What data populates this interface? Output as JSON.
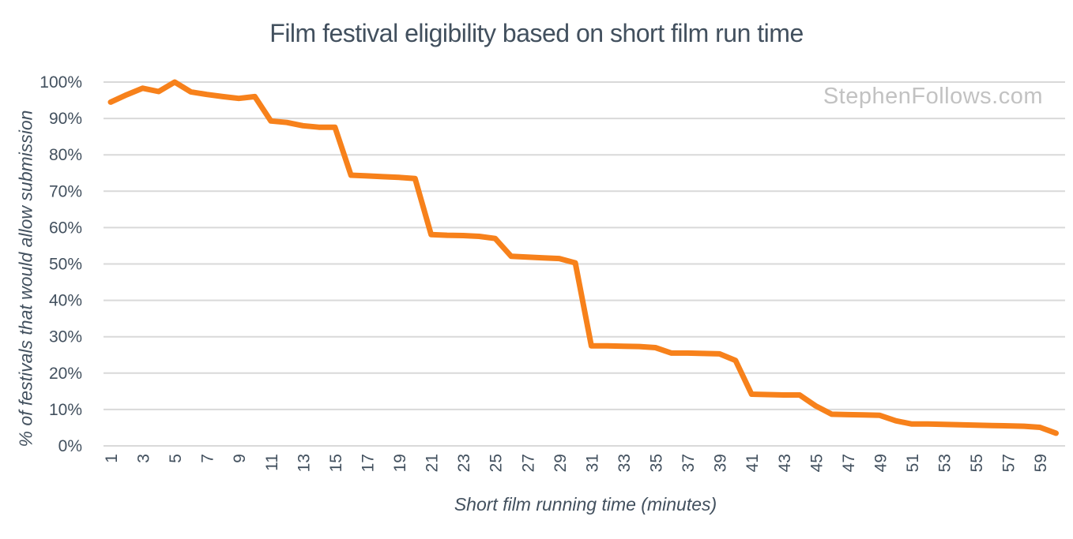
{
  "header": {
    "title": "Film festival eligibility based on short film run time"
  },
  "watermark": {
    "label": "StephenFollows.com"
  },
  "axes": {
    "x_title": "Short film running time (minutes)",
    "y_title": "% of festivals that would allow submission"
  },
  "colors": {
    "line_orange": "#F7811B",
    "text_slate": "#42505E",
    "gridline_gray": "#D9D9D9",
    "watermark_gray": "#C2C2C2",
    "background": "#FFFFFF"
  },
  "chart_data": {
    "type": "line",
    "title": "Film festival eligibility based on short film run time",
    "xlabel": "Short film running time (minutes)",
    "ylabel": "% of festivals that would allow submission",
    "legend": "none",
    "grid": "horizontal-only",
    "xlim": [
      1,
      60
    ],
    "ylim": [
      0,
      100
    ],
    "y_ticks": [
      0,
      10,
      20,
      30,
      40,
      50,
      60,
      70,
      80,
      90,
      100
    ],
    "y_tick_suffix": "%",
    "x_tick_labels": [
      1,
      3,
      5,
      7,
      9,
      11,
      13,
      15,
      17,
      19,
      21,
      23,
      25,
      27,
      29,
      31,
      33,
      35,
      37,
      39,
      41,
      43,
      45,
      47,
      49,
      51,
      53,
      55,
      57,
      59
    ],
    "line_color": "#F7811B",
    "x": [
      1,
      2,
      3,
      4,
      5,
      6,
      7,
      8,
      9,
      10,
      11,
      12,
      13,
      14,
      15,
      16,
      17,
      18,
      19,
      20,
      21,
      22,
      23,
      24,
      25,
      26,
      27,
      28,
      29,
      30,
      31,
      32,
      33,
      34,
      35,
      36,
      37,
      38,
      39,
      40,
      41,
      42,
      43,
      44,
      45,
      46,
      47,
      48,
      49,
      50,
      51,
      52,
      53,
      54,
      55,
      56,
      57,
      58,
      59,
      60
    ],
    "values": [
      94.5,
      96.5,
      98.3,
      97.4,
      100,
      97.3,
      96.6,
      96.0,
      95.5,
      96.0,
      89.3,
      88.9,
      88.0,
      87.6,
      87.6,
      74.4,
      74.2,
      74.0,
      73.8,
      73.5,
      58.1,
      57.9,
      57.8,
      57.6,
      57.0,
      52.1,
      51.9,
      51.7,
      51.5,
      50.3,
      27.5,
      27.5,
      27.4,
      27.3,
      27.0,
      25.5,
      25.5,
      25.4,
      25.3,
      23.5,
      14.2,
      14.1,
      14.0,
      14.0,
      11.0,
      8.7,
      8.6,
      8.5,
      8.4,
      6.9,
      6.0,
      6.0,
      5.9,
      5.8,
      5.7,
      5.6,
      5.5,
      5.4,
      5.1,
      3.5
    ]
  }
}
